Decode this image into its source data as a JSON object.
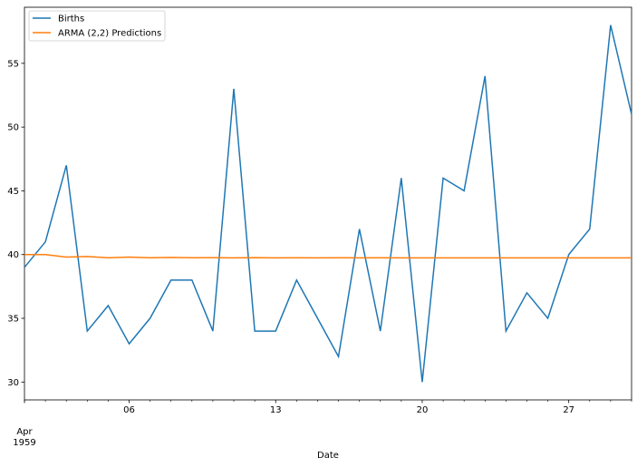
{
  "chart_data": {
    "type": "line",
    "x": [
      "1959-04-01",
      "1959-04-02",
      "1959-04-03",
      "1959-04-04",
      "1959-04-05",
      "1959-04-06",
      "1959-04-07",
      "1959-04-08",
      "1959-04-09",
      "1959-04-10",
      "1959-04-11",
      "1959-04-12",
      "1959-04-13",
      "1959-04-14",
      "1959-04-15",
      "1959-04-16",
      "1959-04-17",
      "1959-04-18",
      "1959-04-19",
      "1959-04-20",
      "1959-04-21",
      "1959-04-22",
      "1959-04-23",
      "1959-04-24",
      "1959-04-25",
      "1959-04-26",
      "1959-04-27",
      "1959-04-28",
      "1959-04-29",
      "1959-04-30"
    ],
    "series": [
      {
        "name": "Births",
        "color": "#1f77b4",
        "values": [
          39,
          41,
          47,
          34,
          36,
          33,
          35,
          38,
          38,
          34,
          53,
          34,
          34,
          38,
          35,
          32,
          42,
          34,
          46,
          30,
          46,
          45,
          54,
          34,
          37,
          35,
          40,
          42,
          58,
          51
        ]
      },
      {
        "name": "ARMA (2,2) Predictions",
        "color": "#ff7f0e",
        "values": [
          40.0,
          40.0,
          39.8,
          39.85,
          39.75,
          39.8,
          39.75,
          39.78,
          39.75,
          39.76,
          39.74,
          39.76,
          39.74,
          39.75,
          39.74,
          39.75,
          39.74,
          39.75,
          39.74,
          39.74,
          39.74,
          39.74,
          39.74,
          39.74,
          39.74,
          39.74,
          39.74,
          39.74,
          39.74,
          39.74
        ]
      }
    ],
    "xlabel": "Date",
    "ylabel": "",
    "ylim": [
      28.6,
      59.4
    ],
    "yticks": [
      30,
      35,
      40,
      45,
      50,
      55
    ],
    "xticks": [
      {
        "date": "1959-04-06",
        "label": "06"
      },
      {
        "date": "1959-04-13",
        "label": "13"
      },
      {
        "date": "1959-04-20",
        "label": "20"
      },
      {
        "date": "1959-04-27",
        "label": "27"
      }
    ],
    "x_corner_label": [
      "Apr",
      "1959"
    ],
    "legend_position": "upper-left",
    "grid": false
  }
}
